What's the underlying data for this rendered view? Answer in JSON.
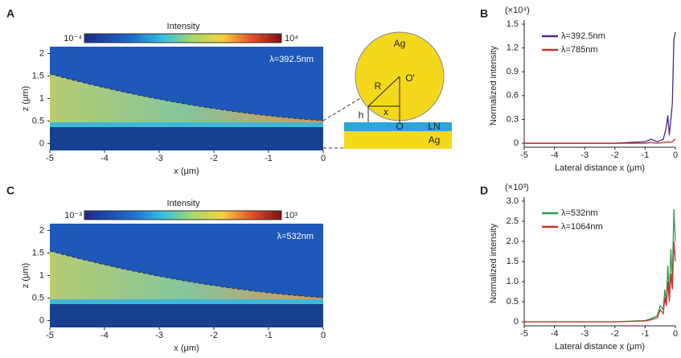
{
  "chart_data": [
    {
      "type": "heatmap",
      "panel": "A",
      "title": "Intensity",
      "colorbar_labels": [
        "10⁻⁴",
        "10⁴"
      ],
      "annotation": "λ=392.5nm",
      "xlabel": "x (μm)",
      "ylabel": "z (μm)",
      "xlim": [
        -5,
        0
      ],
      "xticks": [
        -5,
        -4,
        -3,
        -2,
        -1,
        0
      ],
      "ylim": [
        -0.15,
        2.15
      ],
      "yticks": [
        0,
        0.5,
        1,
        1.5,
        2
      ]
    },
    {
      "type": "line",
      "panel": "B",
      "multiplier": "(×10⁴)",
      "xlabel": "Lateral distance x (μm)",
      "ylabel": "Normalized intensity",
      "xlim": [
        -5,
        0
      ],
      "xticks": [
        -5,
        -4,
        -3,
        -2,
        -1,
        0
      ],
      "ylim": [
        -0.05,
        1.5
      ],
      "yticks": [
        0,
        0.3,
        0.6,
        0.9,
        1.2,
        1.5
      ],
      "x": [
        -5,
        -4,
        -3,
        -2,
        -1.5,
        -1,
        -0.8,
        -0.6,
        -0.4,
        -0.3,
        -0.25,
        -0.2,
        -0.1,
        -0.05,
        0
      ],
      "series": [
        {
          "name": "λ=392.5nm",
          "color": "#4b2a85",
          "values": [
            0,
            0,
            0,
            0,
            0.01,
            0.02,
            0.05,
            0.02,
            0.05,
            0.2,
            0.35,
            0.1,
            0.5,
            1.3,
            1.4
          ]
        },
        {
          "name": "λ=785nm",
          "color": "#cc2f2a",
          "values": [
            0,
            0,
            0,
            0,
            0,
            0,
            0.01,
            0,
            0.01,
            0.01,
            0.02,
            0.01,
            0.02,
            0.04,
            0.05
          ]
        }
      ]
    },
    {
      "type": "heatmap",
      "panel": "C",
      "title": "Intensity",
      "colorbar_labels": [
        "10⁻³",
        "10³"
      ],
      "annotation": "λ=532nm",
      "xlabel": "x (μm)",
      "ylabel": "z (μm)",
      "xlim": [
        -5,
        0
      ],
      "xticks": [
        -5,
        -4,
        -3,
        -2,
        -1,
        0
      ],
      "ylim": [
        -0.15,
        2.15
      ],
      "yticks": [
        0,
        0.5,
        1,
        1.5,
        2
      ]
    },
    {
      "type": "line",
      "panel": "D",
      "multiplier": "(×10³)",
      "xlabel": "Lateral distance x (μm)",
      "ylabel": "Normalized intensity",
      "xlim": [
        -5,
        0
      ],
      "xticks": [
        -5,
        -4,
        -3,
        -2,
        -1,
        0
      ],
      "ylim": [
        -0.1,
        3.0
      ],
      "yticks": [
        0,
        0.5,
        {
          "value": 1,
          "label": "1.0"
        },
        1.5,
        {
          "value": 2,
          "label": "2.0"
        },
        2.5,
        {
          "value": 3,
          "label": "3.0"
        }
      ],
      "x": [
        -5,
        -2,
        -1,
        -0.8,
        -0.6,
        -0.5,
        -0.4,
        -0.35,
        -0.3,
        -0.25,
        -0.2,
        -0.15,
        -0.1,
        -0.05,
        0
      ],
      "series": [
        {
          "name": "λ=532nm",
          "color": "#2e9b4a",
          "values": [
            0,
            0,
            0.03,
            0.08,
            0.15,
            0.4,
            0.3,
            0.8,
            0.5,
            1.4,
            0.6,
            1.8,
            1.0,
            2.8,
            2.0
          ]
        },
        {
          "name": "λ=1064nm",
          "color": "#cc2f2a",
          "values": [
            0,
            0,
            0.02,
            0.05,
            0.1,
            0.3,
            0.2,
            0.6,
            0.4,
            1.0,
            0.5,
            1.2,
            0.8,
            2.0,
            1.5
          ]
        }
      ]
    }
  ],
  "diagram": {
    "labels": [
      "Ag",
      "R",
      "O'",
      "h",
      "x",
      "O",
      "LN",
      "Ag"
    ]
  }
}
